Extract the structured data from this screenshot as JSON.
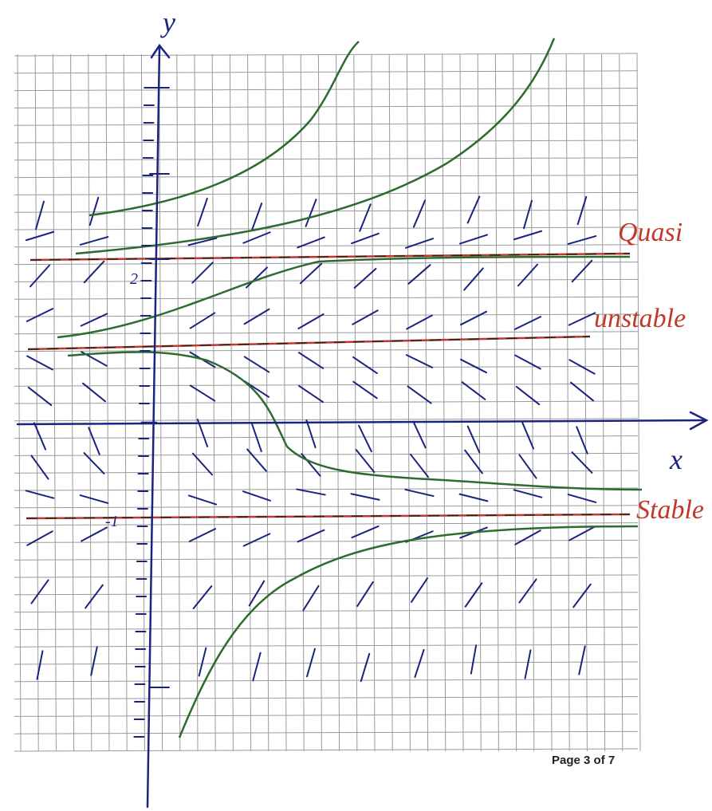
{
  "axes": {
    "x_label": "x",
    "y_label": "y",
    "tick_labels": [
      "2",
      "-1"
    ]
  },
  "annotations": [
    "Quasi",
    "unstable",
    "Stable"
  ],
  "footer": "Page 3 of 7"
}
